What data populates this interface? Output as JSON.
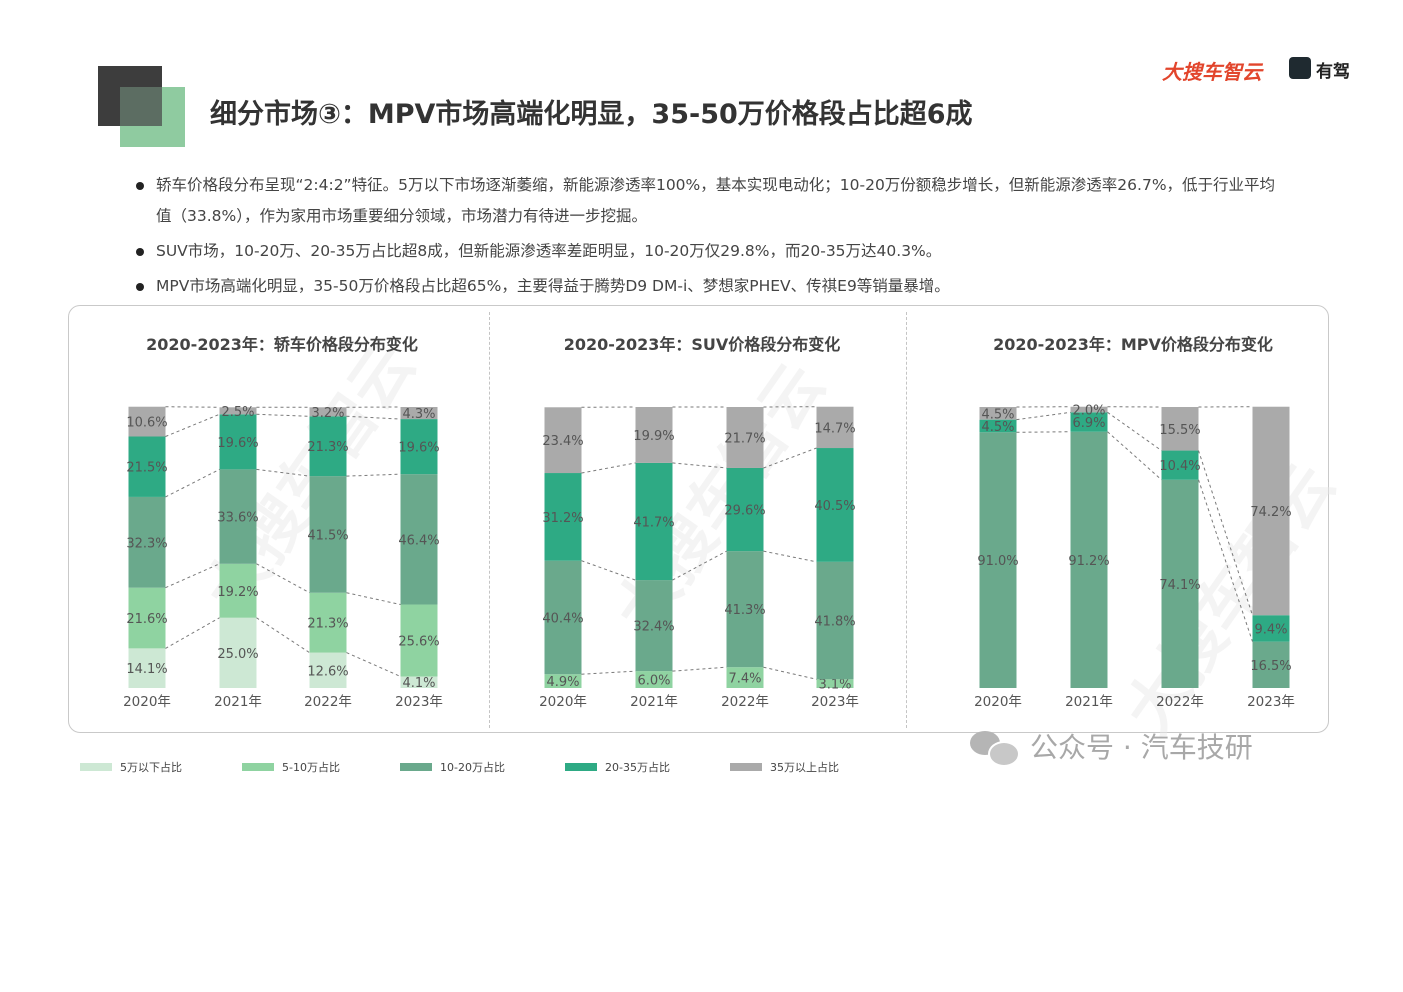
{
  "header": {
    "title": "细分市场③：MPV市场高端化明显，35-50万价格段占比超6成",
    "brand_primary": "大搜车智云",
    "brand_secondary": "有驾"
  },
  "bullets": [
    "轿车价格段分布呈现“2:4:2”特征。5万以下市场逐渐萎缩，新能源渗透率100%，基本实现电动化；10-20万份额稳步增长，但新能源渗透率26.7%，低于行业平均值（33.8%），作为家用市场重要细分领域，市场潜力有待进一步挖掘。",
    "SUV市场，10-20万、20-35万占比超8成，但新能源渗透率差距明显，10-20万仅29.8%，而20-35万达40.3%。",
    "MPV市场高端化明显，35-50万价格段占比超65%，主要得益于腾势D9 DM-i、梦想家PHEV、传祺E9等销量暴增。"
  ],
  "watermark_text": "大搜车智云",
  "footer_source": "公众号 · 汽车技研",
  "colors": {
    "under5": "#cde8d4",
    "5to10": "#8fd3a1",
    "10to20": "#6aa98c",
    "20to35": "#2eaa84",
    "over35": "#aaaaaa",
    "title_dark": "#333333",
    "brand_red": "#e2452c"
  },
  "legend": [
    "5万以下占比",
    "5-10万占比",
    "10-20万占比",
    "20-35万占比",
    "35万以上占比"
  ],
  "chart_data": [
    {
      "type": "bar",
      "stacked": true,
      "title": "2020-2023年：轿车价格段分布变化",
      "categories": [
        "2020年",
        "2021年",
        "2022年",
        "2023年"
      ],
      "series": [
        {
          "name": "5万以下占比",
          "values": [
            14.1,
            25.0,
            12.6,
            4.1
          ]
        },
        {
          "name": "5-10万占比",
          "values": [
            21.6,
            19.2,
            21.3,
            25.6
          ]
        },
        {
          "name": "10-20万占比",
          "values": [
            32.3,
            33.6,
            41.5,
            46.4
          ]
        },
        {
          "name": "20-35万占比",
          "values": [
            21.5,
            19.6,
            21.3,
            19.6
          ]
        },
        {
          "name": "35万以上占比",
          "values": [
            10.6,
            2.5,
            3.2,
            4.3
          ]
        }
      ],
      "labels": [
        [
          "14.1%",
          "21.6%",
          "32.3%",
          "21.5%",
          "10.6%"
        ],
        [
          "25.0%",
          "19.2%",
          "33.6%",
          "19.6%",
          "2.5%"
        ],
        [
          "12.6%",
          "21.3%",
          "41.5%",
          "21.3%",
          "3.2%"
        ],
        [
          "4.1%",
          "25.6%",
          "46.4%",
          "19.6%",
          "4.3%"
        ]
      ],
      "ylim": [
        0,
        100
      ]
    },
    {
      "type": "bar",
      "stacked": true,
      "title": "2020-2023年：SUV价格段分布变化",
      "categories": [
        "2020年",
        "2021年",
        "2022年",
        "2023年"
      ],
      "series": [
        {
          "name": "5万以下占比",
          "values": [
            0,
            0,
            0,
            0
          ]
        },
        {
          "name": "5-10万占比",
          "values": [
            4.9,
            6.0,
            7.4,
            3.1
          ]
        },
        {
          "name": "10-20万占比",
          "values": [
            40.4,
            32.4,
            41.3,
            41.8
          ]
        },
        {
          "name": "20-35万占比",
          "values": [
            31.2,
            41.7,
            29.6,
            40.5
          ]
        },
        {
          "name": "35万以上占比",
          "values": [
            23.4,
            19.9,
            21.7,
            14.7
          ]
        }
      ],
      "labels": [
        [
          "",
          "4.9%",
          "40.4%",
          "31.2%",
          "23.4%"
        ],
        [
          "",
          "6.0%",
          "32.4%",
          "41.7%",
          "19.9%"
        ],
        [
          "",
          "7.4%",
          "41.3%",
          "29.6%",
          "21.7%"
        ],
        [
          "",
          "3.1%",
          "41.8%",
          "40.5%",
          "14.7%"
        ]
      ],
      "ylim": [
        0,
        100
      ]
    },
    {
      "type": "bar",
      "stacked": true,
      "title": "2020-2023年：MPV价格段分布变化",
      "categories": [
        "2020年",
        "2021年",
        "2022年",
        "2023年"
      ],
      "series": [
        {
          "name": "5万以下占比",
          "values": [
            0,
            0,
            0,
            0
          ]
        },
        {
          "name": "5-10万占比",
          "values": [
            0,
            0,
            0,
            0
          ]
        },
        {
          "name": "10-20万占比",
          "values": [
            91.0,
            91.2,
            74.1,
            16.5
          ]
        },
        {
          "name": "20-35万占比",
          "values": [
            4.5,
            6.9,
            10.4,
            9.4
          ]
        },
        {
          "name": "35万以上占比",
          "values": [
            4.5,
            2.0,
            15.5,
            74.2
          ]
        }
      ],
      "labels": [
        [
          "",
          "",
          "91.0%",
          "4.5%",
          "4.5%"
        ],
        [
          "",
          "",
          "91.2%",
          "6.9%",
          "2.0%"
        ],
        [
          "",
          "",
          "74.1%",
          "10.4%",
          "15.5%"
        ],
        [
          "",
          "",
          "16.5%",
          "9.4%",
          "74.2%"
        ]
      ],
      "ylim": [
        0,
        100
      ]
    }
  ]
}
